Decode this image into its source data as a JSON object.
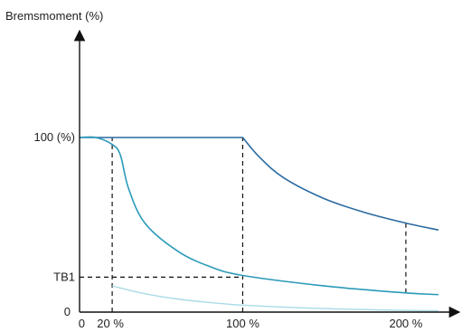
{
  "chart_data": {
    "type": "line",
    "ylabel": "Bremsmoment (%)",
    "y_ticks": [
      {
        "label": "100 (%)",
        "value": 100
      },
      {
        "label": "TB1",
        "value": 20
      },
      {
        "label": "0",
        "value": 0
      }
    ],
    "x_ticks": [
      {
        "label": "0",
        "value": 0
      },
      {
        "label": "20 %",
        "value": 20
      },
      {
        "label": "100 %",
        "value": 100
      },
      {
        "label": "200 %",
        "value": 200
      }
    ],
    "xlim": [
      0,
      220
    ],
    "ylim": [
      0,
      120
    ],
    "series": [
      {
        "color": "#2a6aa1",
        "x": [
          0,
          100,
          110,
          125,
          150,
          175,
          200,
          220
        ],
        "y": [
          100,
          100,
          89,
          77,
          65,
          57,
          51,
          47
        ]
      },
      {
        "color": "#2a9ab8",
        "x": [
          0,
          10,
          20,
          25,
          30,
          40,
          60,
          80,
          100,
          150,
          200,
          220
        ],
        "y": [
          100,
          100,
          96,
          90,
          71,
          51,
          35,
          26,
          21,
          15,
          11,
          10
        ]
      },
      {
        "color": "#a9dbe7",
        "x": [
          20,
          40,
          60,
          80,
          100,
          150,
          200,
          220
        ],
        "y": [
          15,
          10.5,
          7.5,
          5.5,
          4,
          2,
          1,
          0.8
        ]
      }
    ],
    "reference_lines": [
      {
        "axis": "x",
        "value": 20,
        "from": 0,
        "to": 100
      },
      {
        "axis": "x",
        "value": 100,
        "from": 0,
        "to": 100
      },
      {
        "axis": "x",
        "value": 200,
        "from": 11,
        "to": 51
      },
      {
        "axis": "y",
        "value": 20,
        "from": 0,
        "to": 100
      }
    ]
  }
}
